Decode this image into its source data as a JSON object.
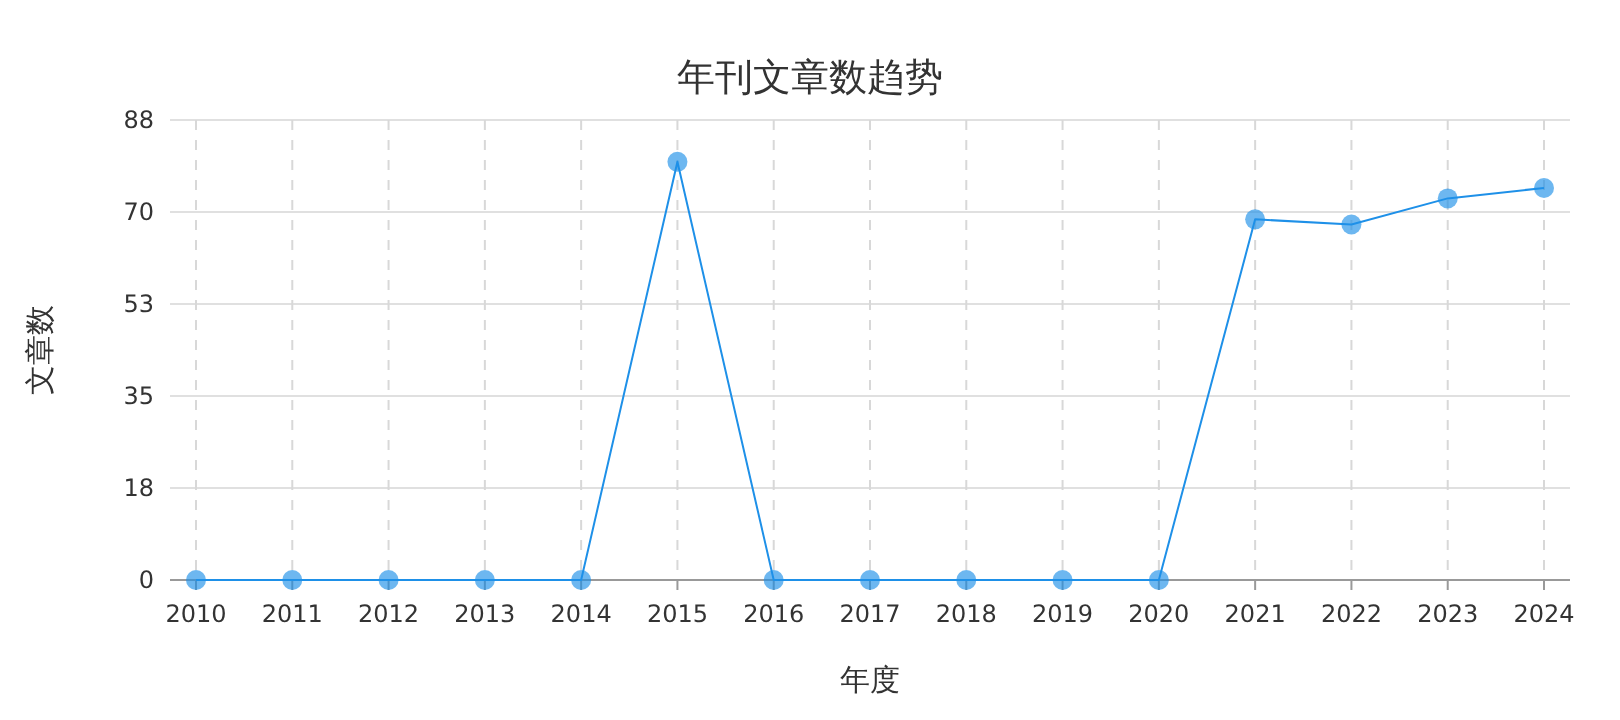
{
  "chart_data": {
    "type": "line",
    "title": "年刊文章数趋势",
    "xlabel": "年度",
    "ylabel": "文章数",
    "categories": [
      "2010",
      "2011",
      "2012",
      "2013",
      "2014",
      "2015",
      "2016",
      "2017",
      "2018",
      "2019",
      "2020",
      "2021",
      "2022",
      "2023",
      "2024"
    ],
    "series": [
      {
        "color": "#1e90e8",
        "values": [
          0,
          0,
          0,
          0,
          0,
          80,
          0,
          0,
          0,
          0,
          0,
          69,
          68,
          73,
          75
        ]
      }
    ],
    "ylim": [
      0,
      88
    ],
    "yticks": [
      0,
      {
        "value": 17.6,
        "label": "18"
      },
      {
        "value": 35.2,
        "label": "35"
      },
      {
        "value": 52.8,
        "label": "53"
      },
      {
        "value": 70.4,
        "label": "70"
      },
      88
    ],
    "grid": true,
    "marker": "circle",
    "line_style": "solid"
  }
}
